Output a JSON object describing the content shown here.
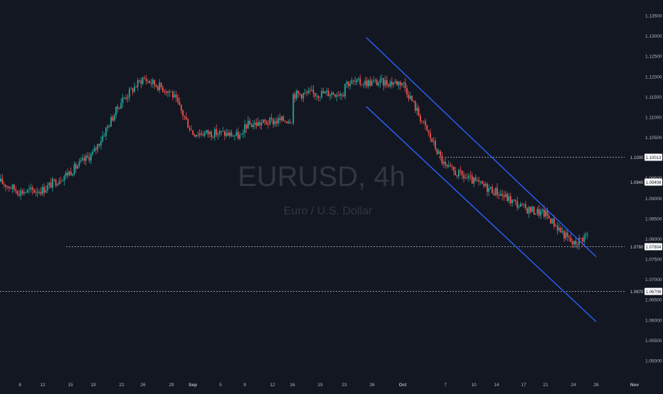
{
  "watermark": {
    "symbol": "EURUSD, 4h",
    "description": "Euro / U.S. Dollar"
  },
  "colors": {
    "background": "#131722",
    "up": "#26a69a",
    "down": "#ef5350",
    "channel": "#2962ff",
    "axis_text": "#b2b5be",
    "dashed": "#9598a1",
    "watermark": "#3a3e4a"
  },
  "chart_data": {
    "type": "candlestick",
    "timeframe": "4h",
    "x_ticks": [
      "8",
      "12",
      "15",
      "19",
      "22",
      "26",
      "29",
      "Sep",
      "5",
      "9",
      "12",
      "16",
      "19",
      "23",
      "26",
      "Oct",
      "7",
      "10",
      "14",
      "17",
      "21",
      "24",
      "28",
      "Nov"
    ],
    "y_ticks": [
      "1.13500",
      "1.13000",
      "1.12500",
      "1.12000",
      "1.11500",
      "1.11000",
      "1.10500",
      "1.10000",
      "1.09500",
      "1.09000",
      "1.08500",
      "1.08000",
      "1.07500",
      "1.07000",
      "1.06500",
      "1.06000",
      "1.05500",
      "1.05000"
    ],
    "ylim": [
      1.0485,
      1.1372
    ],
    "horizontal_levels": [
      {
        "axis_label": "1.1000",
        "price_label": "1.10013",
        "value": 1.10013
      },
      {
        "axis_label": "1.0940",
        "price_label": "1.09406",
        "value": 1.09406
      },
      {
        "axis_label": "1.0780",
        "price_label": "1.07804",
        "value": 1.07804
      },
      {
        "axis_label": "1.0670",
        "price_label": "1.06708",
        "value": 1.06708
      }
    ],
    "descending_channel": {
      "upper": {
        "from": {
          "x_tick": "26",
          "y": 1.1295
        },
        "to": {
          "x_tick": "28",
          "y": 1.0755
        }
      },
      "lower": {
        "from": {
          "x_tick": "26",
          "y": 1.1125
        },
        "to": {
          "x_tick": "28",
          "y": 1.0595
        }
      }
    },
    "price_path": [
      [
        "start",
        1.094
      ],
      [
        "8",
        1.0915
      ],
      [
        "12",
        1.092
      ],
      [
        "15",
        1.0965
      ],
      [
        "19",
        1.101
      ],
      [
        "22",
        1.114
      ],
      [
        "26",
        1.1195
      ],
      [
        "29",
        1.116
      ],
      [
        "Sep",
        1.106
      ],
      [
        "5",
        1.106
      ],
      [
        "9",
        1.105
      ],
      [
        "12",
        1.101
      ],
      [
        "16",
        1.1095
      ],
      [
        "19",
        1.1135
      ],
      [
        "23",
        1.116
      ],
      [
        "26",
        1.118
      ],
      [
        "Oct",
        1.1185
      ],
      [
        "7",
        1.0975
      ],
      [
        "10",
        1.094
      ],
      [
        "14",
        1.0915
      ],
      [
        "17",
        1.0875
      ],
      [
        "21",
        1.086
      ],
      [
        "24",
        1.0785
      ],
      [
        "28",
        1.0827
      ]
    ]
  }
}
